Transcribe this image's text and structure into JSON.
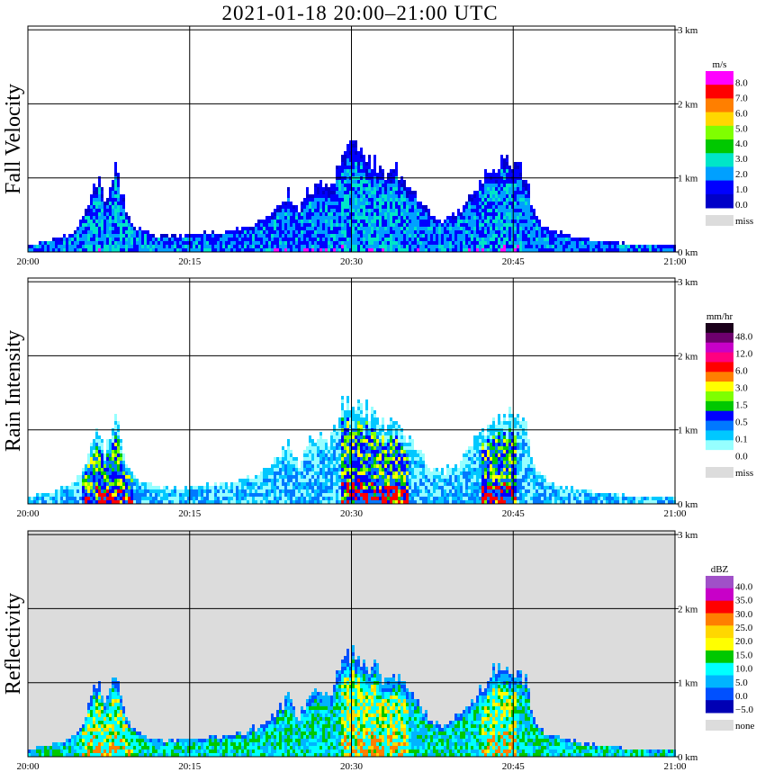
{
  "chart_data": {
    "type": "heatmap",
    "title": "2021-01-18   20:00–21:00 UTC",
    "x_ticks": [
      "20:00",
      "20:15",
      "20:30",
      "20:45",
      "21:00"
    ],
    "x_range": [
      "20:00",
      "21:00"
    ],
    "y_ticks": [
      "0 km",
      "1 km",
      "2 km",
      "3 km"
    ],
    "y_range_km": [
      0,
      3.05
    ],
    "grid": true,
    "panels": [
      {
        "ylabel": "Fall Velocity",
        "unit": "m/s",
        "levels": [
          "8.0",
          "7.0",
          "6.0",
          "5.0",
          "4.0",
          "3.0",
          "2.0",
          "1.0",
          "0.0"
        ],
        "colors": [
          "#ff00ff",
          "#ff0000",
          "#ff7f00",
          "#ffd700",
          "#7fff00",
          "#00c800",
          "#00e5c8",
          "#00a0ff",
          "#0000ff",
          "#0000c8"
        ],
        "missing_label": "miss",
        "missing_color": "#dcdcdc",
        "background": "#ffffff"
      },
      {
        "ylabel": "Rain Intensity",
        "unit": "mm/hr",
        "levels": [
          "48.0",
          "12.0",
          "6.0",
          "3.0",
          "1.5",
          "0.5",
          "0.1",
          "0.0"
        ],
        "colors": [
          "#1a001a",
          "#6e006e",
          "#c800c8",
          "#ff0080",
          "#ff0000",
          "#ff7f00",
          "#ffff00",
          "#7fff00",
          "#00c800",
          "#0000ff",
          "#0078ff",
          "#00c8ff",
          "#96ffff",
          "#ffffff"
        ],
        "missing_label": "miss",
        "missing_color": "#dcdcdc",
        "background": "#ffffff"
      },
      {
        "ylabel": "Reflectivity",
        "unit": "dBZ",
        "levels": [
          "40.0",
          "35.0",
          "30.0",
          "25.0",
          "20.0",
          "15.0",
          "10.0",
          "5.0",
          "0.0",
          "−5.0"
        ],
        "colors": [
          "#a050c8",
          "#c800c8",
          "#ff0000",
          "#ff7f00",
          "#ffd700",
          "#ffff00",
          "#00c800",
          "#00ffff",
          "#00b4ff",
          "#0050ff",
          "#0000b4"
        ],
        "missing_label": "none",
        "missing_color": "#dcdcdc",
        "background": "#dcdcdc"
      }
    ],
    "echo_tops_km": [
      {
        "t": 0,
        "h": 0.12
      },
      {
        "t": 2,
        "h": 0.2
      },
      {
        "t": 4,
        "h": 0.28
      },
      {
        "t": 5,
        "h": 0.5
      },
      {
        "t": 6,
        "h": 0.95
      },
      {
        "t": 6.5,
        "h": 1.05
      },
      {
        "t": 7,
        "h": 0.7
      },
      {
        "t": 8,
        "h": 1.2
      },
      {
        "t": 9,
        "h": 0.6
      },
      {
        "t": 10,
        "h": 0.35
      },
      {
        "t": 12,
        "h": 0.25
      },
      {
        "t": 14,
        "h": 0.25
      },
      {
        "t": 16,
        "h": 0.28
      },
      {
        "t": 18,
        "h": 0.3
      },
      {
        "t": 20,
        "h": 0.35
      },
      {
        "t": 22,
        "h": 0.5
      },
      {
        "t": 24,
        "h": 0.85
      },
      {
        "t": 25,
        "h": 0.55
      },
      {
        "t": 26,
        "h": 0.9
      },
      {
        "t": 27,
        "h": 0.95
      },
      {
        "t": 28,
        "h": 0.9
      },
      {
        "t": 29,
        "h": 1.4
      },
      {
        "t": 30,
        "h": 1.45
      },
      {
        "t": 31,
        "h": 1.35
      },
      {
        "t": 32,
        "h": 1.25
      },
      {
        "t": 33,
        "h": 1.05
      },
      {
        "t": 34,
        "h": 1.15
      },
      {
        "t": 35,
        "h": 0.95
      },
      {
        "t": 36,
        "h": 0.8
      },
      {
        "t": 37,
        "h": 0.55
      },
      {
        "t": 38,
        "h": 0.45
      },
      {
        "t": 40,
        "h": 0.6
      },
      {
        "t": 42,
        "h": 1.0
      },
      {
        "t": 43,
        "h": 1.25
      },
      {
        "t": 44,
        "h": 1.3
      },
      {
        "t": 45,
        "h": 1.25
      },
      {
        "t": 46,
        "h": 1.1
      },
      {
        "t": 47,
        "h": 0.5
      },
      {
        "t": 48,
        "h": 0.35
      },
      {
        "t": 50,
        "h": 0.25
      },
      {
        "t": 52,
        "h": 0.2
      },
      {
        "t": 55,
        "h": 0.15
      },
      {
        "t": 58,
        "h": 0.12
      },
      {
        "t": 60,
        "h": 0.12
      }
    ],
    "cores_time_min": [
      6.5,
      8,
      30.5,
      33.5,
      43.5
    ]
  }
}
